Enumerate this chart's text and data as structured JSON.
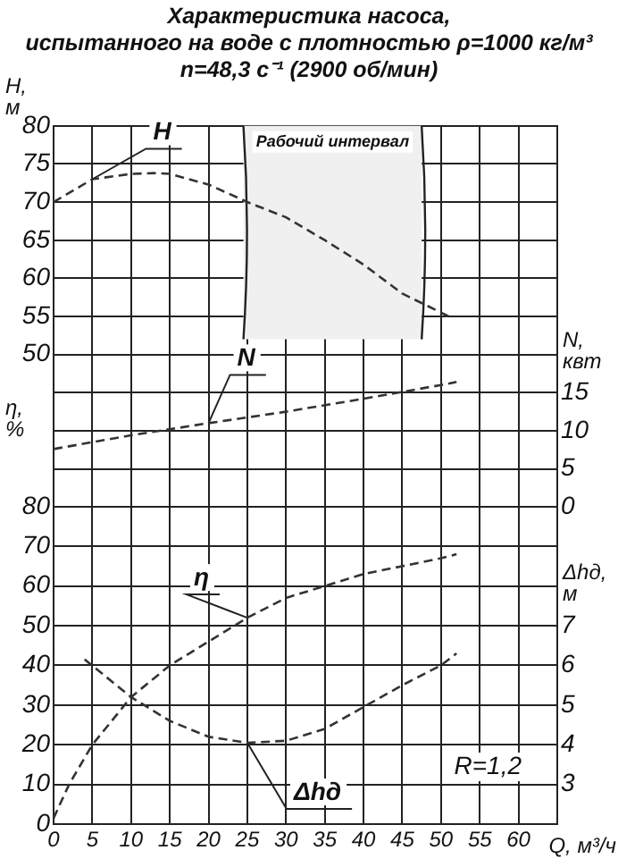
{
  "chart_data": [
    {
      "type": "line",
      "title": "Характеристика насоса,\nиспытанного  на воде с плотностью ρ=1000 кг/м³",
      "subtitle": "n=48,3 с⁻¹ (2900 об/мин)",
      "ylabel": "H, м",
      "y2label": "N, квт",
      "xlim": [
        0,
        65
      ],
      "xticks": [
        0,
        5,
        10,
        15,
        20,
        25,
        30,
        35,
        40,
        45,
        50,
        55,
        60
      ],
      "ylim": [
        30,
        80
      ],
      "yticks": [
        {
          "value": 35,
          "label": null
        },
        {
          "value": 40,
          "label": null
        },
        {
          "value": 45,
          "label": null
        },
        50,
        55,
        60,
        65,
        70,
        75,
        80
      ],
      "y2lim": [
        0,
        50
      ],
      "y2ticks": [
        0,
        5,
        10,
        15
      ],
      "series": [
        {
          "name": "H",
          "color": "#333333",
          "x": [
            0,
            5,
            10,
            13,
            15,
            20,
            25,
            30,
            35,
            40,
            45,
            51
          ],
          "values": [
            70,
            73,
            73.7,
            73.8,
            73.7,
            72.3,
            70,
            68,
            65,
            61.8,
            58,
            55
          ]
        },
        {
          "name": "N",
          "color": "#333333",
          "axis": "y2",
          "x": [
            0,
            10,
            20,
            30,
            40,
            50,
            52
          ],
          "values": [
            7.6,
            9.4,
            11,
            12.5,
            14.2,
            16,
            16.4
          ]
        }
      ],
      "bands": [
        {
          "axis": "x",
          "from": 24.5,
          "to": 47.5,
          "label": "Рабочий интервал",
          "color": "#f0f0f0"
        }
      ],
      "tick_labels": "y",
      "grid": true,
      "legend": false,
      "marker": "none",
      "line_style": "dashed"
    },
    {
      "type": "line",
      "xlabel": "Q, м³/ч",
      "ylabel": "η, %",
      "y2label": "Δhд, м",
      "xlim": [
        0,
        65
      ],
      "xticks": [
        0,
        5,
        10,
        15,
        20,
        25,
        30,
        35,
        40,
        45,
        50,
        55,
        60
      ],
      "ylim": [
        0,
        80
      ],
      "yticks": [
        0,
        10,
        20,
        30,
        40,
        50,
        60,
        70,
        80
      ],
      "y2lim": [
        2,
        10
      ],
      "y2ticks": [
        3,
        4,
        5,
        6,
        7
      ],
      "series": [
        {
          "name": "η",
          "color": "#333333",
          "x": [
            0,
            2,
            5,
            10,
            15,
            20,
            25,
            30,
            35,
            40,
            45,
            50,
            52
          ],
          "values": [
            1.5,
            10,
            20,
            32,
            40,
            46,
            52,
            57,
            60,
            63,
            65,
            67,
            68
          ]
        },
        {
          "name": "Δhд",
          "color": "#333333",
          "axis": "y2",
          "x": [
            4,
            10,
            15,
            20,
            25,
            30,
            35,
            40,
            45,
            50,
            52
          ],
          "values": [
            6.15,
            5.2,
            4.6,
            4.2,
            4.05,
            4.1,
            4.4,
            4.95,
            5.5,
            6,
            6.3
          ]
        }
      ],
      "annotations": [
        "R=1,2"
      ],
      "grid": true,
      "legend": false,
      "marker": "none",
      "line_style": "dashed"
    }
  ]
}
